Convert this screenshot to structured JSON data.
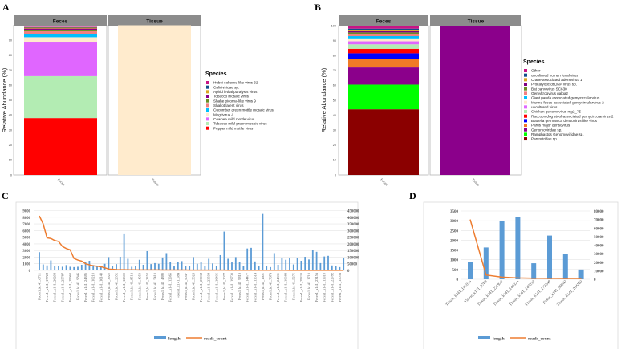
{
  "colors": {
    "bar_blue": "#5b9bd5",
    "line_orange": "#ed7d31",
    "strip": "#8c8c8c"
  },
  "chart_data": [
    {
      "panel": "A",
      "type": "bar",
      "stacked": true,
      "ylabel": "Relative Abundance (%)",
      "yticks": [
        "0",
        "10",
        "20",
        "30",
        "40",
        "50",
        "60",
        "70",
        "80",
        "90"
      ],
      "ylim": [
        0,
        100
      ],
      "facets": [
        "Feces",
        "Tissue"
      ],
      "legend_title": "Species",
      "species": [
        {
          "name": "Hubei sobemo-like virus 32",
          "color": "#c71585",
          "values": [
            0.3,
            0
          ]
        },
        {
          "name": "Caliciviridae sp.",
          "color": "#104e8b",
          "values": [
            0.3,
            0
          ]
        },
        {
          "name": "Aphid lethal paralysis virus",
          "color": "#daa520",
          "values": [
            0.6,
            0
          ]
        },
        {
          "name": "Tobacco mosaic virus",
          "color": "#8b008b",
          "values": [
            0.8,
            0
          ]
        },
        {
          "name": "Shahe picorna-like virus 9",
          "color": "#6b8e23",
          "values": [
            1.0,
            0
          ]
        },
        {
          "name": "Shallot latent virus",
          "color": "#f08080",
          "values": [
            2.0,
            0
          ]
        },
        {
          "name": "Cucumber green mottle mosaic virus",
          "color": "#00bfff",
          "values": [
            2.0,
            0
          ]
        },
        {
          "name": "Megrivirus A",
          "color": "#ffebcd",
          "values": [
            3.0,
            100
          ]
        },
        {
          "name": "Cowpea mild mottle virus",
          "color": "#e066ff",
          "values": [
            23.0,
            0
          ]
        },
        {
          "name": "Tobacco mild green mosaic virus",
          "color": "#b3ecb3",
          "values": [
            28.0,
            0
          ]
        },
        {
          "name": "Pepper mild mottle virus",
          "color": "#ff0000",
          "values": [
            38.0,
            0
          ]
        }
      ]
    },
    {
      "panel": "B",
      "type": "bar",
      "stacked": true,
      "ylabel": "Relative Abundance (%)",
      "yticks": [
        "0",
        "10",
        "20",
        "30",
        "40",
        "50",
        "60",
        "70",
        "80",
        "90",
        "100"
      ],
      "ylim": [
        0,
        100
      ],
      "facets": [
        "Feces",
        "Tissue"
      ],
      "legend_title": "Species",
      "species": [
        {
          "name": "Other",
          "color": "#c71585",
          "values": [
            2.0,
            0
          ]
        },
        {
          "name": "uncultured human fecal virus",
          "color": "#104e8b",
          "values": [
            0.7,
            0
          ]
        },
        {
          "name": "Crane-associated adenovirus 1",
          "color": "#daa520",
          "values": [
            1.0,
            0
          ]
        },
        {
          "name": "Prokaryotic dsDNA virus sp.",
          "color": "#800080",
          "values": [
            0.8,
            0
          ]
        },
        {
          "name": "Bat parvovirus SC630",
          "color": "#6b8e23",
          "values": [
            1.0,
            0
          ]
        },
        {
          "name": "Gemykrogvirus galga2",
          "color": "#f08080",
          "values": [
            1.5,
            0
          ]
        },
        {
          "name": "Giant panda associated gemycircularvirus",
          "color": "#00bfff",
          "values": [
            1.5,
            0
          ]
        },
        {
          "name": "Murine feces-associated gemycircularvirus 2",
          "color": "#ffebcd",
          "values": [
            2.0,
            0
          ]
        },
        {
          "name": "uncultured virus",
          "color": "#e066ff",
          "values": [
            2.0,
            0
          ]
        },
        {
          "name": "Chicken genomovirus mg2_75",
          "color": "#b3ecb3",
          "values": [
            3.0,
            0
          ]
        },
        {
          "name": "Raccoon dog stool-associated gemycircularvirus 2",
          "color": "#ff0000",
          "values": [
            3.0,
            0
          ]
        },
        {
          "name": "Blattella germanica densovirus-like virus",
          "color": "#0000ff",
          "values": [
            4.0,
            0
          ]
        },
        {
          "name": "Parus major densovirus",
          "color": "#f07a26",
          "values": [
            5.5,
            0
          ]
        },
        {
          "name": "Genomoviridae sp.",
          "color": "#8b008b",
          "values": [
            11.5,
            100
          ]
        },
        {
          "name": "Ramphastos Genomoviridae sp.",
          "color": "#00ff00",
          "values": [
            16.5,
            0
          ]
        },
        {
          "name": "Parvoviridae sp.",
          "color": "#8b0000",
          "values": [
            44.0,
            0
          ]
        }
      ]
    },
    {
      "panel": "C",
      "type": "bar+line",
      "left_ticks": [
        "0",
        "1000",
        "2000",
        "3000",
        "4000",
        "5000",
        "6000",
        "7000",
        "8000",
        "9000"
      ],
      "left_ylim": [
        0,
        9000
      ],
      "right_ticks": [
        "0",
        "50000",
        "100000",
        "150000",
        "200000",
        "250000",
        "300000",
        "350000",
        "400000",
        "450000"
      ],
      "right_ylim": [
        0,
        450000
      ],
      "legend": [
        "length",
        "reads_count"
      ],
      "categories": [
        "Feces1_k141_6711",
        "",
        "Feces1_k141_17728",
        "",
        "Feces1_k141_26294",
        "",
        "Feces1_k141_25787",
        "",
        "Feces1_k141_19963",
        "",
        "Feces1_k141_9845",
        "",
        "Feces1_k141_24385",
        "",
        "Feces1_k141_10210",
        "",
        "Feces1_k141_16140",
        "",
        "Feces1_k141_3922",
        "",
        "Feces1_k141_2852",
        "",
        "Feces1_k141_12300",
        "",
        "Feces1_k141_8512",
        "",
        "Feces1_k141_4950",
        "",
        "Feces1_k141_3352",
        "",
        "Feces1_k141_5410",
        "",
        "Feces1_k141_4880",
        "",
        "Feces1_k141_12365",
        "",
        "Feces1_k141_384",
        "",
        "Feces1_k141_9047",
        "",
        "Feces1_k141_5028",
        "",
        "Feces1_k141_23938",
        "",
        "Feces1_k141_23598",
        "",
        "Feces1_k141_16405",
        "",
        "Feces1_k141_2077",
        "",
        "Feces1_k141_19730",
        "",
        "Feces1_k141_9819",
        "",
        "Feces1_k141_14477",
        "",
        "Feces1_k141_13514",
        "",
        "Feces1_k141_1601",
        "",
        "Feces1_k141_7676",
        "",
        "Feces1_k141_24331",
        "",
        "Feces1_k141_10384",
        "",
        "Feces1_k141_5275",
        "",
        "Feces1_k141_29333",
        "",
        "Feces1_k141_1710",
        "",
        "Feces1_k141_23156",
        "",
        "Feces1_k141_13310",
        "",
        "Feces1_k141_22782",
        "",
        "Feces1_k141_15036",
        ""
      ],
      "length": [
        2750,
        900,
        750,
        1500,
        650,
        650,
        550,
        800,
        550,
        500,
        550,
        850,
        1300,
        1450,
        800,
        700,
        600,
        1000,
        2000,
        600,
        950,
        2050,
        5450,
        1750,
        550,
        650,
        1600,
        850,
        2900,
        950,
        1100,
        1000,
        1950,
        2600,
        1250,
        600,
        1250,
        1400,
        650,
        700,
        2000,
        1000,
        1250,
        650,
        1750,
        1050,
        700,
        2300,
        5850,
        1750,
        1200,
        2000,
        1250,
        650,
        3300,
        3400,
        1350,
        650,
        8500,
        650,
        500,
        2600,
        850,
        1850,
        1600,
        1850,
        900,
        1900,
        1450,
        2050,
        1650,
        3100,
        2800,
        1100,
        2100,
        2200,
        750,
        650,
        500,
        1850
      ],
      "reads_count": [
        410000,
        350000,
        245000,
        240000,
        225000,
        218000,
        180000,
        165000,
        155000,
        90000,
        78000,
        70000,
        50000,
        42000,
        35000,
        32000,
        28000,
        20000,
        10000,
        8000,
        6000,
        5500,
        5000,
        4800,
        4500,
        4300,
        4100,
        4000,
        3800,
        3600,
        3500,
        3400,
        3300,
        3200,
        3100,
        3000,
        2900,
        2800,
        2700,
        2600,
        2500,
        2400,
        2300,
        2200,
        2100,
        2000,
        2000,
        1900,
        1900,
        1800,
        1800,
        1700,
        1700,
        1600,
        1600,
        1500,
        1500,
        1400,
        1400,
        1300,
        1300,
        1300,
        1200,
        1200,
        1200,
        1100,
        1100,
        1100,
        1000,
        1000,
        1000,
        1000,
        900,
        900,
        900,
        900,
        800,
        800,
        800,
        800
      ]
    },
    {
      "panel": "D",
      "type": "bar+line",
      "left_ticks": [
        "0",
        "500",
        "1000",
        "1500",
        "2000",
        "2500",
        "3000",
        "3500"
      ],
      "left_ylim": [
        0,
        3500
      ],
      "right_ticks": [
        "0",
        "10000",
        "20000",
        "30000",
        "40000",
        "50000",
        "60000",
        "70000",
        "80000"
      ],
      "right_ylim": [
        0,
        80000
      ],
      "legend": [
        "length",
        "reads_count"
      ],
      "categories": [
        "Tissue_k141_141026",
        "Tissue_k141_3769",
        "Tissue_k141_221922",
        "Tissue_k141_146324",
        "Tissue_k141_147033",
        "Tissue_k141_172348",
        "Tissue_k141_88042",
        "Tissue_k141_104163"
      ],
      "length": [
        900,
        1630,
        2980,
        3200,
        820,
        2240,
        1290,
        500
      ],
      "reads_count": [
        70000,
        5000,
        2500,
        1500,
        1200,
        1000,
        1000,
        1000
      ]
    }
  ],
  "panel_labels": [
    "A",
    "B",
    "C",
    "D"
  ]
}
